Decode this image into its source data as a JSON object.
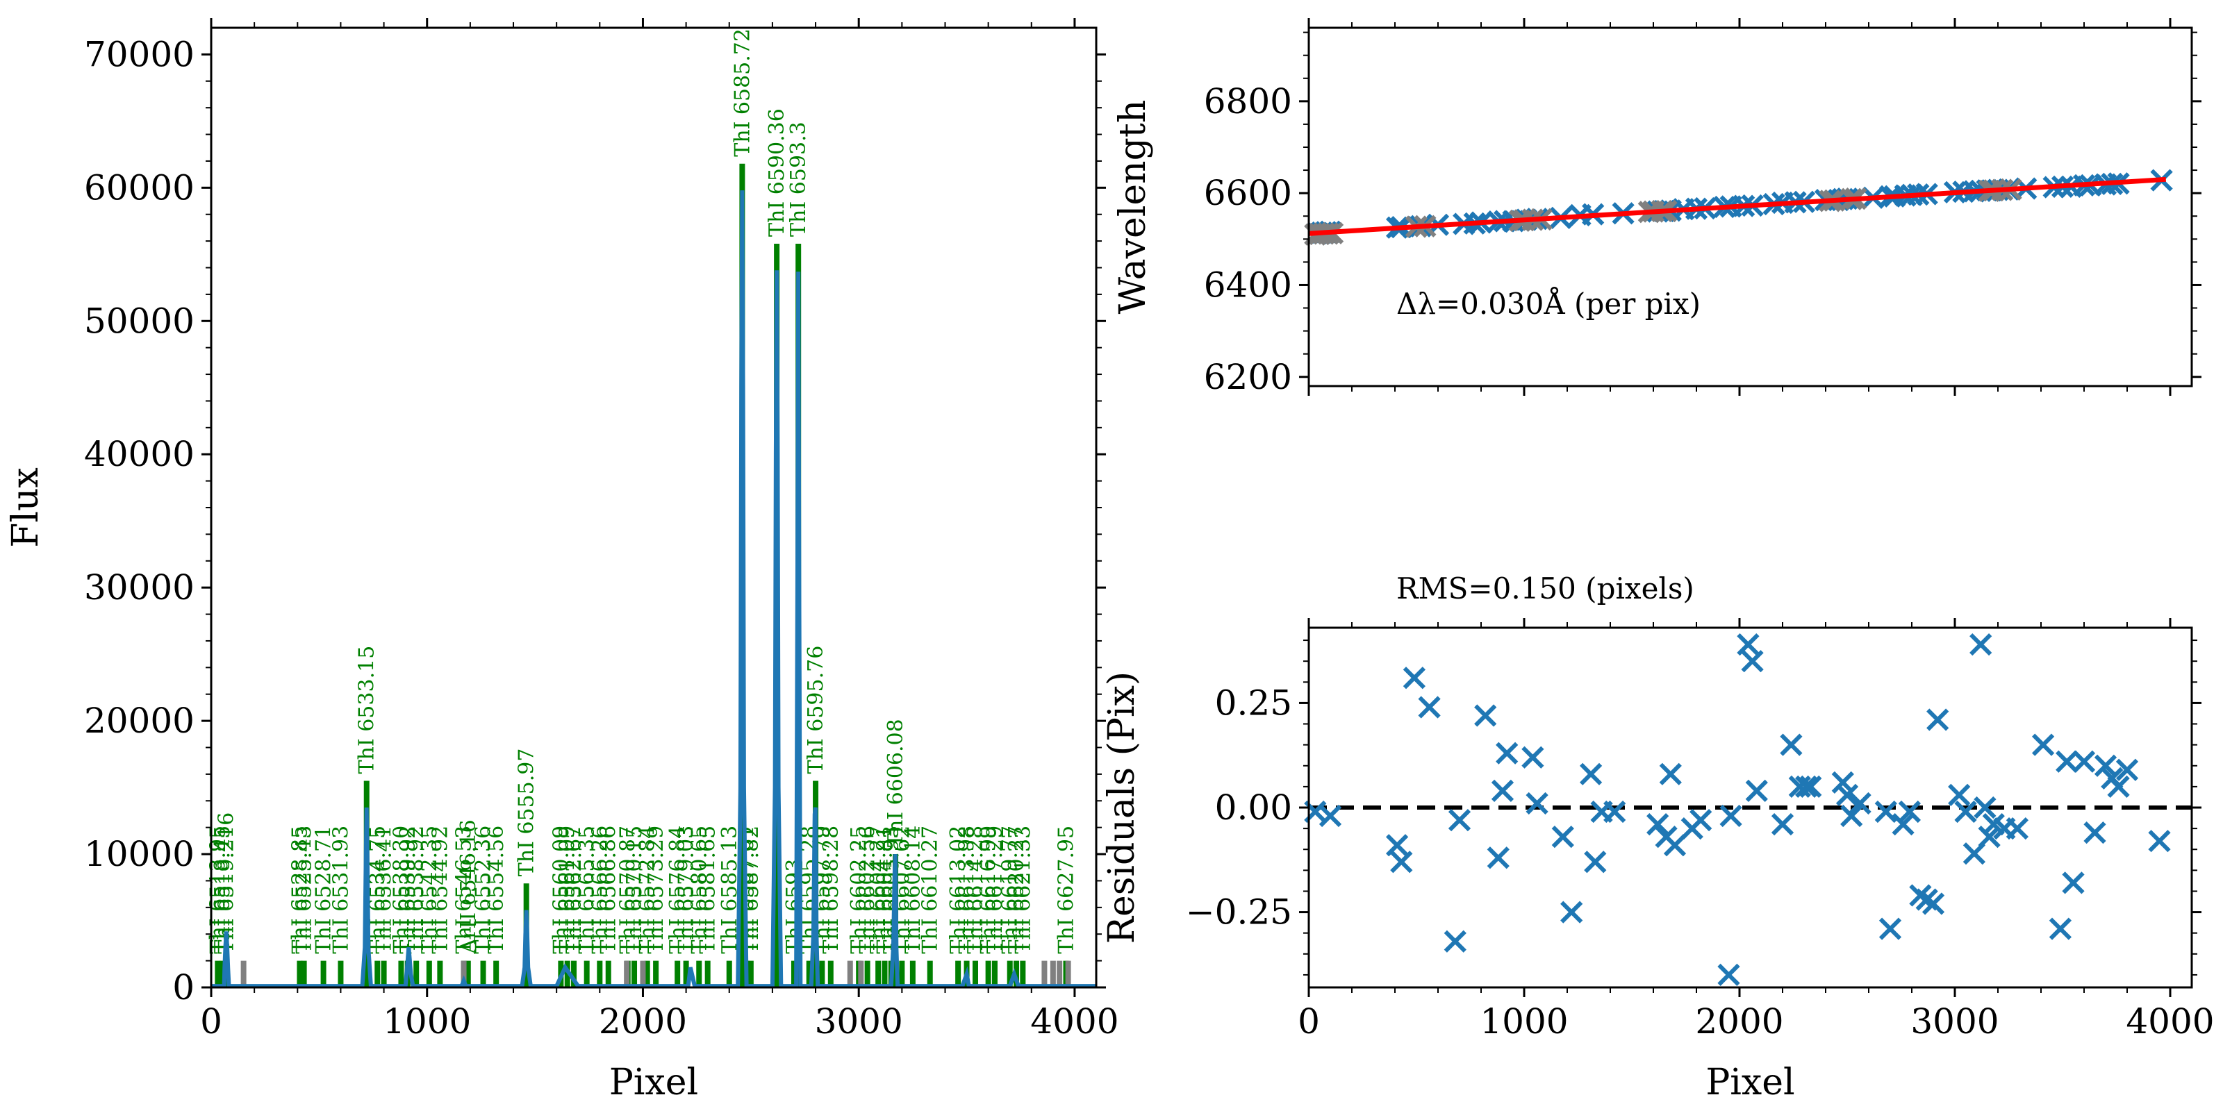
{
  "chart_data": [
    {
      "type": "line",
      "id": "spectrum",
      "xlabel": "Pixel",
      "ylabel": "Flux",
      "xlim": [
        0,
        4100
      ],
      "ylim": [
        0,
        72000
      ],
      "xticks": [
        0,
        1000,
        2000,
        3000,
        4000
      ],
      "yticks": [
        0,
        10000,
        20000,
        30000,
        40000,
        50000,
        60000,
        70000
      ],
      "series": [
        {
          "x": [
            0,
            60,
            62,
            66,
            70,
            74,
            78,
            82,
            100,
            150,
            400,
            700,
            712,
            716,
            720,
            724,
            728,
            740,
            900,
            905,
            910,
            915,
            920,
            925,
            935,
            1100,
            1160,
            1170,
            1180,
            1300,
            1440,
            1452,
            1456,
            1460,
            1464,
            1468,
            1480,
            1600,
            1640,
            1700,
            1800,
            1900,
            2000,
            2150,
            2210,
            2220,
            2240,
            2300,
            2400,
            2440,
            2452,
            2456,
            2460,
            2464,
            2468,
            2480,
            2600,
            2612,
            2616,
            2620,
            2624,
            2628,
            2640,
            2700,
            2710,
            2716,
            2720,
            2724,
            2730,
            2750,
            2780,
            2790,
            2796,
            2800,
            2804,
            2810,
            2830,
            2950,
            3100,
            3150,
            3160,
            3166,
            3170,
            3174,
            3180,
            3200,
            3300,
            3480,
            3500,
            3510,
            3600,
            3650,
            3700,
            3720,
            3740,
            4000,
            4100
          ],
          "y": [
            100,
            100,
            1500,
            3000,
            4200,
            3000,
            1500,
            100,
            100,
            100,
            100,
            100,
            3000,
            9000,
            13500,
            9000,
            3000,
            100,
            100,
            1000,
            2000,
            3000,
            2000,
            1000,
            100,
            100,
            100,
            500,
            100,
            100,
            100,
            1500,
            4000,
            5800,
            4000,
            1500,
            100,
            100,
            1500,
            100,
            100,
            100,
            100,
            100,
            100,
            1500,
            100,
            100,
            100,
            100,
            15000,
            45000,
            59800,
            45000,
            15000,
            100,
            100,
            15000,
            40000,
            53800,
            40000,
            15000,
            100,
            100,
            100,
            30000,
            53700,
            30000,
            100,
            100,
            100,
            4000,
            13000,
            13500,
            4000,
            100,
            100,
            100,
            100,
            100,
            3000,
            8500,
            10000,
            3000,
            100,
            100,
            100,
            100,
            1000,
            100,
            100,
            100,
            100,
            1000,
            100,
            100,
            100
          ]
        }
      ],
      "line_markers": {
        "unlabeled_gray_x": [
          150,
          1170,
          1925,
          2000,
          2960,
          3010,
          3860,
          3900,
          3930,
          3970
        ],
        "top_y": 2000,
        "heights": [
          {
            "x": 720,
            "y": 15500
          },
          {
            "x": 2460,
            "y": 61800
          },
          {
            "x": 2620,
            "y": 55800
          },
          {
            "x": 2720,
            "y": 55800
          },
          {
            "x": 2800,
            "y": 15500
          },
          {
            "x": 1460,
            "y": 7800
          },
          {
            "x": 3170,
            "y": 10000
          },
          {
            "x": 66,
            "y": 4500
          }
        ],
        "labels": [
          {
            "x": 30,
            "text": "ThI 6513.95"
          },
          {
            "x": 52,
            "text": "ThI 6518.45"
          },
          {
            "x": 70,
            "text": "ThI 6519.216"
          },
          {
            "x": 410,
            "text": "ThI 6528.85"
          },
          {
            "x": 430,
            "text": "ThI 6525.43"
          },
          {
            "x": 520,
            "text": "ThI 6528.71"
          },
          {
            "x": 600,
            "text": "ThI 6531.93"
          },
          {
            "x": 720,
            "text": "ThI 6533.15"
          },
          {
            "x": 770,
            "text": "ThI 6534.75"
          },
          {
            "x": 800,
            "text": "ThI 6536.41"
          },
          {
            "x": 880,
            "text": "ThI 6538.30"
          },
          {
            "x": 910,
            "text": "ThI 6539.92"
          },
          {
            "x": 950,
            "text": "ThI 6538.92"
          },
          {
            "x": 1010,
            "text": "ThI 6542.35"
          },
          {
            "x": 1060,
            "text": "ThI 6544.92"
          },
          {
            "x": 1170,
            "text": "ThI 6546.53"
          },
          {
            "x": 1190,
            "text": "ArII 6546.16"
          },
          {
            "x": 1260,
            "text": "ThI 6552.36"
          },
          {
            "x": 1320,
            "text": "ThI 6554.56"
          },
          {
            "x": 1460,
            "text": "ThI 6555.97"
          },
          {
            "x": 1620,
            "text": "ThI 6560.09"
          },
          {
            "x": 1650,
            "text": "ThI 6561.09"
          },
          {
            "x": 1680,
            "text": "ThI 6562.67"
          },
          {
            "x": 1740,
            "text": "ThI 6565.35"
          },
          {
            "x": 1800,
            "text": "ThI 6566.26"
          },
          {
            "x": 1840,
            "text": "ThI 6566.86"
          },
          {
            "x": 1930,
            "text": "ThI 6570.87"
          },
          {
            "x": 1960,
            "text": "ThI 6570.15"
          },
          {
            "x": 2020,
            "text": "ThI 6572.84"
          },
          {
            "x": 2060,
            "text": "ThI 6573.29"
          },
          {
            "x": 2160,
            "text": "ThI 6576.84"
          },
          {
            "x": 2200,
            "text": "ThI 6579.03"
          },
          {
            "x": 2260,
            "text": "ThI 6580.65"
          },
          {
            "x": 2300,
            "text": "ThI 6581.65"
          },
          {
            "x": 2400,
            "text": "ThI 6585.13"
          },
          {
            "x": 2460,
            "text": "ThI 6585.72"
          },
          {
            "x": 2480,
            "text": "ThI 6587.61"
          },
          {
            "x": 2500,
            "text": "ThI 6587.82"
          },
          {
            "x": 2620,
            "text": "ThI 6590.36"
          },
          {
            "x": 2720,
            "text": "ThI 6593.3"
          },
          {
            "x": 2700,
            "text": "ThI 6593"
          },
          {
            "x": 2770,
            "text": "ThI 6595.28"
          },
          {
            "x": 2800,
            "text": "ThI 6595.76"
          },
          {
            "x": 2830,
            "text": "ThI 6597.79"
          },
          {
            "x": 2870,
            "text": "ThI 6598.28"
          },
          {
            "x": 3000,
            "text": "ThI 6602.25"
          },
          {
            "x": 3040,
            "text": "ThI 6602.56"
          },
          {
            "x": 3090,
            "text": "ThI 6604.27"
          },
          {
            "x": 3120,
            "text": "ThI 6604.81"
          },
          {
            "x": 3150,
            "text": "ThI 6605.93"
          },
          {
            "x": 3170,
            "text": "ThI 6606.08"
          },
          {
            "x": 3200,
            "text": "ThI 6607.62"
          },
          {
            "x": 3250,
            "text": "ThI 6608.14"
          },
          {
            "x": 3330,
            "text": "ThI 6610.27"
          },
          {
            "x": 3460,
            "text": "ThI 6613.02"
          },
          {
            "x": 3500,
            "text": "ThI 6613.98"
          },
          {
            "x": 3540,
            "text": "ThI 6614.28"
          },
          {
            "x": 3600,
            "text": "ThI 6616.99"
          },
          {
            "x": 3630,
            "text": "ThI 6617.29"
          },
          {
            "x": 3700,
            "text": "ThI 6619.77"
          },
          {
            "x": 3730,
            "text": "ThI 6620.27"
          },
          {
            "x": 3760,
            "text": "ThI 6621.33"
          },
          {
            "x": 3960,
            "text": "ThI 6627.95"
          }
        ]
      }
    },
    {
      "type": "scatter",
      "id": "wavelength_fit",
      "xlabel": "",
      "ylabel": "Wavelength",
      "xlim": [
        0,
        4100
      ],
      "ylim": [
        6180,
        6960
      ],
      "yticks": [
        6200,
        6400,
        6600,
        6800
      ],
      "annotation": "Δλ=0.030Å (per pix)",
      "fit_line": {
        "x": [
          0,
          3980
        ],
        "y": [
          6512,
          6630
        ]
      },
      "series": [
        {
          "name": "used",
          "color": "#1f77b4",
          "x": [
            40,
            60,
            80,
            100,
            410,
            430,
            520,
            600,
            720,
            770,
            800,
            880,
            910,
            950,
            1010,
            1060,
            1170,
            1260,
            1320,
            1460,
            1620,
            1650,
            1680,
            1740,
            1800,
            1840,
            1930,
            1960,
            2020,
            2060,
            2160,
            2200,
            2260,
            2300,
            2400,
            2460,
            2480,
            2500,
            2620,
            2700,
            2720,
            2770,
            2800,
            2830,
            2870,
            3000,
            3040,
            3090,
            3120,
            3150,
            3170,
            3200,
            3250,
            3330,
            3460,
            3500,
            3540,
            3600,
            3630,
            3700,
            3730,
            3760,
            3960
          ],
          "y": [
            6513,
            6514,
            6515,
            6516,
            6525,
            6526,
            6528,
            6531,
            6533,
            6534,
            6536,
            6538,
            6539,
            6539,
            6542,
            6544,
            6546,
            6552,
            6554,
            6556,
            6560,
            6561,
            6562,
            6565,
            6566,
            6567,
            6570,
            6571,
            6572,
            6573,
            6576,
            6579,
            6580,
            6581,
            6585,
            6585,
            6587,
            6588,
            6590,
            6593,
            6593,
            6595,
            6596,
            6597,
            6598,
            6602,
            6603,
            6604,
            6605,
            6606,
            6606,
            6607,
            6608,
            6610,
            6613,
            6614,
            6614,
            6617,
            6617,
            6619,
            6620,
            6621,
            6628
          ]
        },
        {
          "name": "rejected",
          "color": "#808080",
          "x": [
            30,
            50,
            70,
            90,
            110,
            500,
            540,
            980,
            1000,
            1040,
            1080,
            1580,
            1600,
            1640,
            1660,
            2420,
            2440,
            2520,
            2540,
            3160,
            3180,
            3220,
            3260
          ],
          "y": [
            6510,
            6511,
            6512,
            6512,
            6513,
            6527,
            6528,
            6540,
            6541,
            6542,
            6543,
            6559,
            6560,
            6561,
            6561,
            6583,
            6584,
            6587,
            6588,
            6605,
            6606,
            6607,
            6608
          ]
        }
      ]
    },
    {
      "type": "scatter",
      "id": "residuals",
      "xlabel": "Pixel",
      "ylabel": "Residuals (Pix)",
      "title": "RMS=0.150 (pixels)",
      "xlim": [
        0,
        4100
      ],
      "ylim": [
        -0.43,
        0.43
      ],
      "xticks": [
        0,
        1000,
        2000,
        3000,
        4000
      ],
      "yticks": [
        -0.25,
        0.0,
        0.25
      ],
      "yticklabels": [
        "−0.25",
        "0.00",
        "0.25"
      ],
      "zero_line": true,
      "series": [
        {
          "color": "#1f77b4",
          "x": [
            30,
            100,
            410,
            430,
            490,
            560,
            680,
            700,
            820,
            880,
            900,
            920,
            1040,
            1060,
            1180,
            1220,
            1310,
            1330,
            1360,
            1420,
            1620,
            1660,
            1680,
            1700,
            1780,
            1820,
            1950,
            1960,
            2040,
            2060,
            2080,
            2200,
            2240,
            2280,
            2310,
            2330,
            2480,
            2500,
            2520,
            2560,
            2680,
            2700,
            2760,
            2790,
            2840,
            2870,
            2900,
            2920,
            3020,
            3050,
            3090,
            3120,
            3140,
            3160,
            3180,
            3230,
            3290,
            3410,
            3490,
            3520,
            3550,
            3600,
            3650,
            3700,
            3730,
            3760,
            3800,
            3950
          ],
          "y": [
            -0.01,
            -0.02,
            -0.09,
            -0.13,
            0.31,
            0.24,
            -0.32,
            -0.03,
            0.22,
            -0.12,
            0.04,
            0.13,
            0.12,
            0.01,
            -0.07,
            -0.25,
            0.08,
            -0.13,
            -0.01,
            -0.01,
            -0.04,
            -0.07,
            0.08,
            -0.09,
            -0.05,
            -0.03,
            -0.4,
            -0.02,
            0.39,
            0.35,
            0.04,
            -0.04,
            0.15,
            0.05,
            0.05,
            0.05,
            0.06,
            0.03,
            -0.02,
            0.01,
            -0.01,
            -0.29,
            -0.04,
            -0.01,
            -0.21,
            -0.22,
            -0.23,
            0.21,
            0.03,
            -0.01,
            -0.11,
            0.39,
            0.0,
            -0.07,
            -0.04,
            -0.05,
            -0.05,
            0.15,
            -0.29,
            0.11,
            -0.18,
            0.11,
            -0.06,
            0.1,
            0.07,
            0.05,
            0.09,
            -0.08
          ]
        }
      ]
    }
  ]
}
